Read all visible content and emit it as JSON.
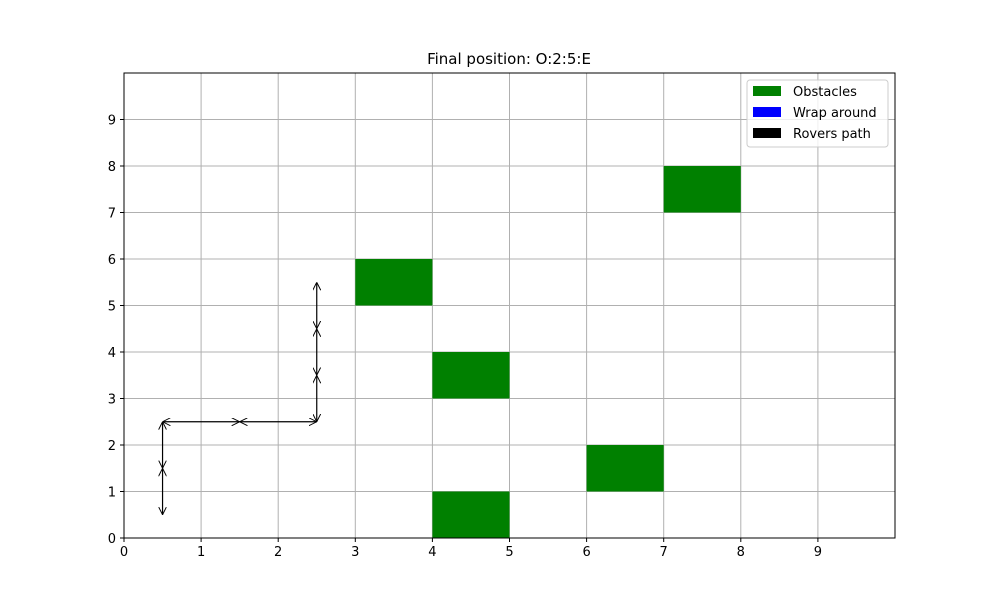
{
  "chart_data": {
    "type": "grid-path",
    "title": "Final position: O:2:5:E",
    "xlim": [
      0,
      10
    ],
    "ylim": [
      0,
      10
    ],
    "xticks": [
      "0",
      "1",
      "2",
      "3",
      "4",
      "5",
      "6",
      "7",
      "8",
      "9"
    ],
    "yticks": [
      "0",
      "1",
      "2",
      "3",
      "4",
      "5",
      "6",
      "7",
      "8",
      "9"
    ],
    "grid": true,
    "legend_position": "top-right",
    "legend": [
      {
        "label": "Obstacles",
        "color": "#008000"
      },
      {
        "label": "Wrap around",
        "color": "#0000ff"
      },
      {
        "label": "Rovers path",
        "color": "#000000"
      }
    ],
    "obstacles": [
      {
        "x": 3,
        "y": 5
      },
      {
        "x": 7,
        "y": 7
      },
      {
        "x": 4,
        "y": 3
      },
      {
        "x": 6,
        "y": 1
      },
      {
        "x": 4,
        "y": 0
      }
    ],
    "path_moves": [
      {
        "from": [
          0.5,
          0.5
        ],
        "to": [
          0.5,
          1.5
        ]
      },
      {
        "from": [
          0.5,
          1.5
        ],
        "to": [
          0.5,
          2.5
        ]
      },
      {
        "from": [
          0.5,
          2.5
        ],
        "to": [
          1.5,
          2.5
        ]
      },
      {
        "from": [
          1.5,
          2.5
        ],
        "to": [
          2.5,
          2.5
        ]
      },
      {
        "from": [
          2.5,
          2.5
        ],
        "to": [
          2.5,
          3.5
        ]
      },
      {
        "from": [
          2.5,
          3.5
        ],
        "to": [
          2.5,
          4.5
        ]
      },
      {
        "from": [
          2.5,
          4.5
        ],
        "to": [
          2.5,
          5.5
        ]
      }
    ],
    "colors": {
      "obstacle": "#008000",
      "grid": "#b0b0b0",
      "path": "#000000"
    }
  }
}
